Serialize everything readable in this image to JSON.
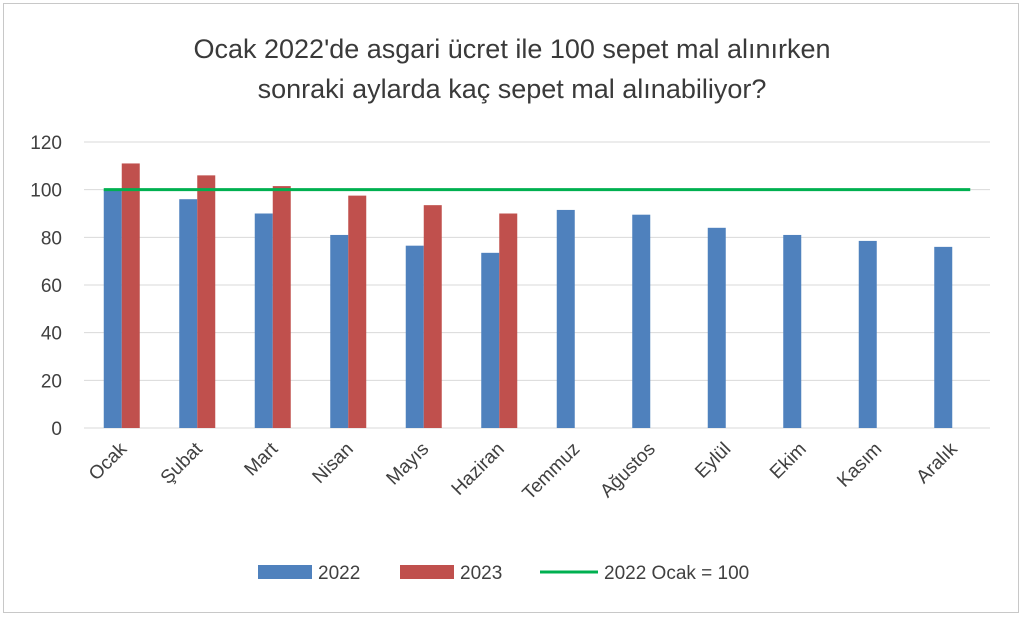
{
  "chart_data": {
    "type": "bar",
    "title_line1": "Ocak 2022'de asgari ücret ile 100 sepet mal alınırken",
    "title_line2": "sonraki aylarda kaç sepet mal alınabiliyor?",
    "categories": [
      "Ocak",
      "Şubat",
      "Mart",
      "Nisan",
      "Mayıs",
      "Haziran",
      "Temmuz",
      "Ağustos",
      "Eylül",
      "Ekim",
      "Kasım",
      "Aralık"
    ],
    "series": [
      {
        "name": "2022",
        "color": "#4f81bd",
        "values": [
          100,
          96,
          90,
          81,
          76.5,
          73.5,
          91.5,
          89.5,
          84,
          81,
          78.5,
          76
        ]
      },
      {
        "name": "2023",
        "color": "#c0504d",
        "values": [
          111,
          106,
          101.5,
          97.5,
          93.5,
          90,
          null,
          null,
          null,
          null,
          null,
          null
        ]
      }
    ],
    "reference_line": {
      "name": "2022 Ocak = 100",
      "value": 100,
      "color": "#00b050"
    },
    "ylim": [
      0,
      120
    ],
    "yticks": [
      0,
      20,
      40,
      60,
      80,
      100,
      120
    ],
    "grid": true,
    "legend_position": "bottom"
  }
}
